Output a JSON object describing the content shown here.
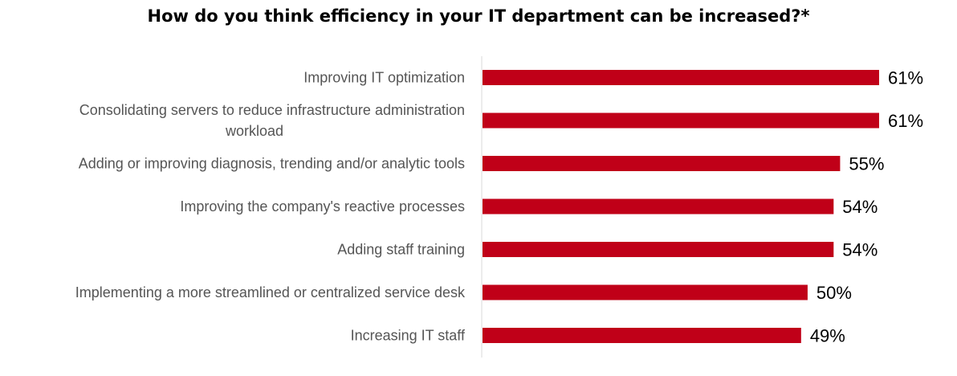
{
  "chart_data": {
    "type": "bar",
    "orientation": "horizontal",
    "title": "How do you think efficiency in your IT department can be increased?*",
    "categories": [
      [
        "Improving IT optimization"
      ],
      [
        "Consolidating servers to reduce infrastructure administration",
        "workload"
      ],
      [
        "Adding or improving diagnosis, trending and/or analytic tools"
      ],
      [
        "Improving the company's reactive processes"
      ],
      [
        "Adding staff training"
      ],
      [
        "Implementing a more streamlined or centralized service desk"
      ],
      [
        "Increasing IT staff"
      ]
    ],
    "values": [
      61,
      61,
      55,
      54,
      54,
      50,
      49
    ],
    "value_labels": [
      "61%",
      "61%",
      "55%",
      "54%",
      "54%",
      "50%",
      "49%"
    ],
    "xlim": [
      0,
      61
    ],
    "grid": false,
    "colors": {
      "bar": "#c00018",
      "axis": "#d9d9d9"
    }
  }
}
